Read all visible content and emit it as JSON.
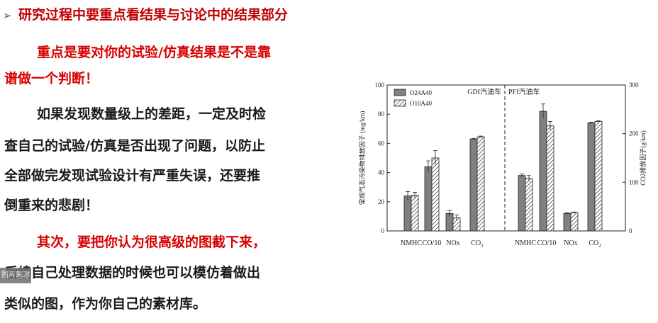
{
  "heading": {
    "bullet": "➢",
    "text": "研究过程中要重点看结果与讨论中的结果部分"
  },
  "para1": {
    "line1": "重点是要对你的试验/仿真结果是不是靠",
    "line2": "谱做一个判断！"
  },
  "para2": {
    "line1": "如果发现数量级上的差距，一定及时检",
    "line2": "查自己的试验/仿真是否出现了问题，以防止",
    "line3": "全部做完发现试验设计有严重失误，还要推",
    "line4": "倒重来的悲剧！"
  },
  "para3": {
    "line1": "其次，要把你认为很高级的图截下来，",
    "line2": "后续自己处理数据的时候也可以模仿着做出",
    "line3": "类似的图，作为你自己的素材库。"
  },
  "chart_data": {
    "type": "bar",
    "groups": [
      {
        "label": "GDI汽油车",
        "categories": [
          "NMHC",
          "CO/10",
          "NOx",
          "CO2"
        ]
      },
      {
        "label": "PFI汽油车",
        "categories": [
          "NMHC",
          "CO/10",
          "NOx",
          "CO2"
        ]
      }
    ],
    "series": [
      {
        "name": "O24A40",
        "values": [
          24,
          44,
          12,
          63,
          38,
          82,
          12,
          74
        ],
        "errors": [
          3,
          4,
          2,
          0.5,
          1,
          5,
          0.5,
          0.5
        ],
        "color": "#808080"
      },
      {
        "name": "O10A40",
        "values": [
          24.5,
          50,
          9,
          64.5,
          36,
          72,
          12.5,
          75
        ],
        "errors": [
          2,
          5,
          2,
          0.5,
          2,
          3,
          0.5,
          0.5
        ],
        "color": "hatched"
      }
    ],
    "ylabel_left": "常规气态污染物排放因子 (mg/km)",
    "ylabel_right": "CO2排放因子(g/km)",
    "ylim_left": [
      0,
      100
    ],
    "ylim_right": [
      0,
      300
    ],
    "yticks_left": [
      "0",
      "20",
      "40",
      "60",
      "80",
      "100"
    ],
    "yticks_right": [
      "0",
      "100",
      "200",
      "300"
    ],
    "legend_position": "top-left",
    "grid": false
  },
  "watermark": "图片来源"
}
